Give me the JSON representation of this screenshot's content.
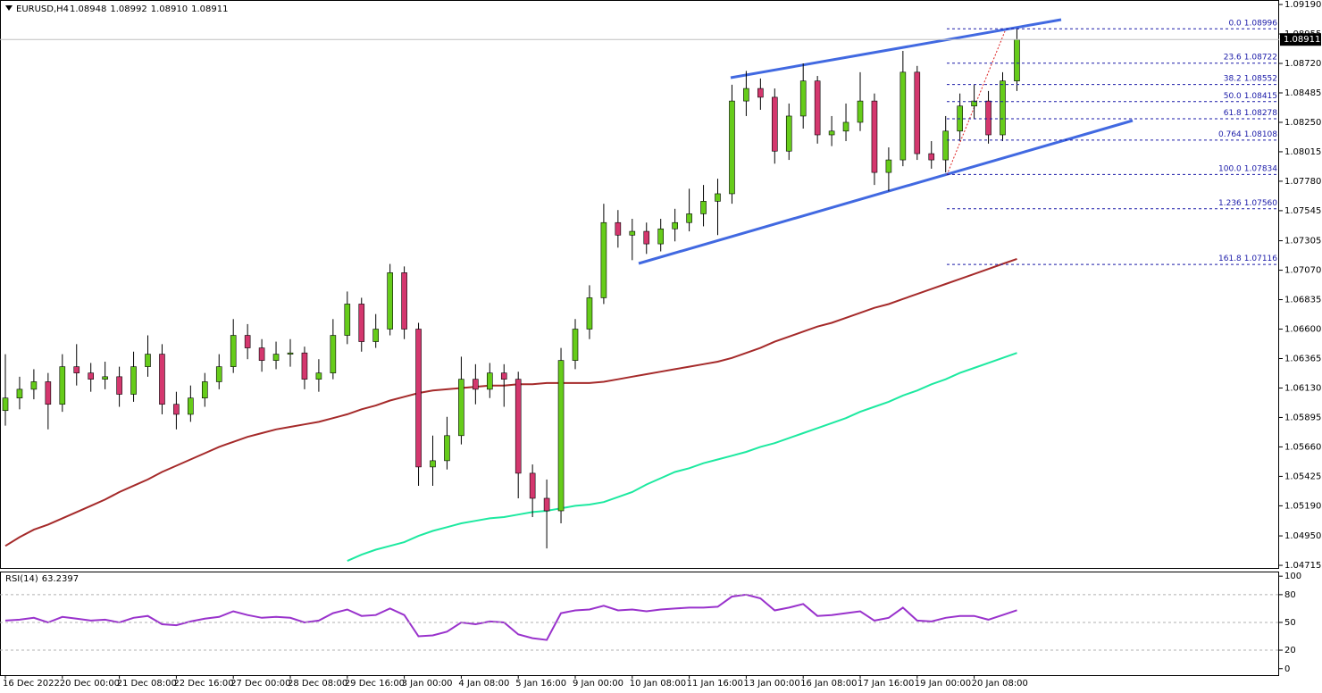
{
  "chart_data": [
    {
      "type": "candlestick",
      "title": "EURUSD,H4",
      "quote": [
        {
          "value": 1.08948,
          "label": "1.08948"
        },
        {
          "value": 1.08992,
          "label": "1.08992"
        },
        {
          "value": 1.0891,
          "label": "1.08910"
        },
        {
          "value": 1.08911,
          "label": "1.08911"
        }
      ],
      "current_price": 1.08911,
      "ylim": [
        1.04694,
        1.09226
      ],
      "yticks": [
        {
          "value": 1.0919,
          "label": "1.09190"
        },
        {
          "value": 1.08955,
          "label": "1.08955"
        },
        {
          "value": 1.0872,
          "label": "1.08720"
        },
        {
          "value": 1.08485,
          "label": "1.08485"
        },
        {
          "value": 1.0825,
          "label": "1.08250"
        },
        {
          "value": 1.08015,
          "label": "1.08015"
        },
        {
          "value": 1.0778,
          "label": "1.07780"
        },
        {
          "value": 1.07545,
          "label": "1.07545"
        },
        {
          "value": 1.07305,
          "label": "1.07305"
        },
        {
          "value": 1.0707,
          "label": "1.07070"
        },
        {
          "value": 1.06835,
          "label": "1.06835"
        },
        {
          "value": 1.066,
          "label": "1.06600"
        },
        {
          "value": 1.06365,
          "label": "1.06365"
        },
        {
          "value": 1.0613,
          "label": "1.06130"
        },
        {
          "value": 1.05895,
          "label": "1.05895"
        },
        {
          "value": 1.0566,
          "label": "1.05660"
        },
        {
          "value": 1.05425,
          "label": "1.05425"
        },
        {
          "value": 1.0519,
          "label": "1.05190"
        },
        {
          "value": 1.0495,
          "label": "1.04950"
        },
        {
          "value": 1.04715,
          "label": "1.04715"
        }
      ],
      "categories": [
        "16 Dec 2022",
        null,
        null,
        null,
        "20 Dec 00:00",
        null,
        null,
        null,
        "21 Dec 08:00",
        null,
        null,
        null,
        "22 Dec 16:00",
        null,
        null,
        null,
        "27 Dec 00:00",
        null,
        null,
        null,
        "28 Dec 08:00",
        null,
        null,
        null,
        "29 Dec 16:00",
        null,
        null,
        null,
        "3 Jan 00:00",
        null,
        null,
        null,
        "4 Jan 08:00",
        null,
        null,
        null,
        "5 Jan 16:00",
        null,
        null,
        null,
        "9 Jan 00:00",
        null,
        null,
        null,
        "10 Jan 08:00",
        null,
        null,
        null,
        "11 Jan 16:00",
        null,
        null,
        null,
        "13 Jan 00:00",
        null,
        null,
        null,
        "16 Jan 08:00",
        null,
        null,
        null,
        "17 Jan 16:00",
        null,
        null,
        null,
        "19 Jan 00:00",
        null,
        null,
        null,
        "20 Jan 08:00",
        null,
        null,
        null
      ],
      "candles": [
        [
          1.0595,
          1.064,
          1.0583,
          1.0605
        ],
        [
          1.0605,
          1.0622,
          1.0596,
          1.0612
        ],
        [
          1.0612,
          1.0628,
          1.0604,
          1.0618
        ],
        [
          1.0618,
          1.0625,
          1.058,
          1.06
        ],
        [
          1.06,
          1.064,
          1.0594,
          1.063
        ],
        [
          1.063,
          1.0648,
          1.0615,
          1.0625
        ],
        [
          1.0625,
          1.0633,
          1.061,
          1.062
        ],
        [
          1.062,
          1.0634,
          1.0612,
          1.0622
        ],
        [
          1.0622,
          1.063,
          1.0598,
          1.0608
        ],
        [
          1.0608,
          1.0642,
          1.0602,
          1.063
        ],
        [
          1.063,
          1.0655,
          1.0622,
          1.064
        ],
        [
          1.064,
          1.0648,
          1.0592,
          1.06
        ],
        [
          1.06,
          1.061,
          1.058,
          1.0592
        ],
        [
          1.0592,
          1.0615,
          1.0586,
          1.0605
        ],
        [
          1.0605,
          1.0625,
          1.0598,
          1.0618
        ],
        [
          1.0618,
          1.064,
          1.0612,
          1.063
        ],
        [
          1.063,
          1.0668,
          1.0625,
          1.0655
        ],
        [
          1.0655,
          1.0664,
          1.0636,
          1.0645
        ],
        [
          1.0645,
          1.0652,
          1.0626,
          1.0635
        ],
        [
          1.0635,
          1.065,
          1.0628,
          1.064
        ],
        [
          1.064,
          1.0652,
          1.063,
          1.0641
        ],
        [
          1.0641,
          1.0646,
          1.0612,
          1.062
        ],
        [
          1.062,
          1.0636,
          1.061,
          1.0625
        ],
        [
          1.0625,
          1.0668,
          1.062,
          1.0655
        ],
        [
          1.0655,
          1.069,
          1.0648,
          1.068
        ],
        [
          1.068,
          1.0685,
          1.0642,
          1.065
        ],
        [
          1.065,
          1.0672,
          1.0645,
          1.066
        ],
        [
          1.066,
          1.0712,
          1.0655,
          1.0705
        ],
        [
          1.0705,
          1.071,
          1.0652,
          1.066
        ],
        [
          1.066,
          1.0665,
          1.0535,
          1.055
        ],
        [
          1.055,
          1.0575,
          1.0535,
          1.0555
        ],
        [
          1.0555,
          1.059,
          1.0548,
          1.0575
        ],
        [
          1.0575,
          1.0638,
          1.0568,
          1.062
        ],
        [
          1.062,
          1.0632,
          1.06,
          1.0612
        ],
        [
          1.0612,
          1.0633,
          1.0605,
          1.0625
        ],
        [
          1.0625,
          1.0632,
          1.0598,
          1.062
        ],
        [
          1.062,
          1.0626,
          1.0525,
          1.0545
        ],
        [
          1.0545,
          1.0552,
          1.051,
          1.0525
        ],
        [
          1.0525,
          1.054,
          1.0485,
          1.0515
        ],
        [
          1.0515,
          1.0645,
          1.0505,
          1.0635
        ],
        [
          1.0635,
          1.0668,
          1.0628,
          1.066
        ],
        [
          1.066,
          1.0695,
          1.0652,
          1.0685
        ],
        [
          1.0685,
          1.076,
          1.068,
          1.0745
        ],
        [
          1.0745,
          1.0755,
          1.0725,
          1.0735
        ],
        [
          1.0735,
          1.0748,
          1.0715,
          1.0738
        ],
        [
          1.0738,
          1.0745,
          1.072,
          1.0728
        ],
        [
          1.0728,
          1.0748,
          1.0722,
          1.074
        ],
        [
          1.074,
          1.0756,
          1.073,
          1.0745
        ],
        [
          1.0745,
          1.0772,
          1.0738,
          1.0752
        ],
        [
          1.0752,
          1.0775,
          1.0742,
          1.0762
        ],
        [
          1.0762,
          1.078,
          1.0735,
          1.0768
        ],
        [
          1.0768,
          1.0855,
          1.076,
          1.0842
        ],
        [
          1.0842,
          1.0866,
          1.083,
          1.0852
        ],
        [
          1.0852,
          1.086,
          1.0835,
          1.0845
        ],
        [
          1.0845,
          1.0852,
          1.0792,
          1.0802
        ],
        [
          1.0802,
          1.084,
          1.0795,
          1.083
        ],
        [
          1.083,
          1.0872,
          1.082,
          1.0858
        ],
        [
          1.0858,
          1.0862,
          1.0808,
          1.0815
        ],
        [
          1.0815,
          1.083,
          1.0806,
          1.0818
        ],
        [
          1.0818,
          1.084,
          1.081,
          1.0825
        ],
        [
          1.0825,
          1.0865,
          1.0818,
          1.0842
        ],
        [
          1.0842,
          1.0848,
          1.0775,
          1.0785
        ],
        [
          1.0785,
          1.0805,
          1.077,
          1.0795
        ],
        [
          1.0795,
          1.0882,
          1.079,
          1.0865
        ],
        [
          1.0865,
          1.087,
          1.0795,
          1.08
        ],
        [
          1.08,
          1.081,
          1.0788,
          1.0795
        ],
        [
          1.0795,
          1.083,
          1.0785,
          1.0818
        ],
        [
          1.0818,
          1.0848,
          1.081,
          1.0838
        ],
        [
          1.0838,
          1.0855,
          1.0828,
          1.0842
        ],
        [
          1.0842,
          1.085,
          1.0808,
          1.0815
        ],
        [
          1.0815,
          1.0865,
          1.081,
          1.0858
        ],
        [
          1.0858,
          1.09,
          1.085,
          1.0891
        ]
      ],
      "bull_color": "#66cc1a",
      "bear_color": "#d4376e",
      "ma_lines": [
        {
          "color": "#a52a2a",
          "values": [
            1.0487,
            1.0494,
            1.05,
            1.0504,
            1.0509,
            1.0514,
            1.0519,
            1.0524,
            1.053,
            1.0535,
            1.054,
            1.0546,
            1.0551,
            1.0556,
            1.0561,
            1.0566,
            1.057,
            1.0574,
            1.0577,
            1.058,
            1.0582,
            1.0584,
            1.0586,
            1.0589,
            1.0592,
            1.0596,
            1.0599,
            1.0603,
            1.0606,
            1.0609,
            1.0611,
            1.0612,
            1.0613,
            1.0614,
            1.0615,
            1.0615,
            1.0616,
            1.0616,
            1.0617,
            1.0617,
            1.0617,
            1.0617,
            1.0618,
            1.062,
            1.0622,
            1.0624,
            1.0626,
            1.0628,
            1.063,
            1.0632,
            1.0634,
            1.0637,
            1.0641,
            1.0645,
            1.065,
            1.0654,
            1.0658,
            1.0662,
            1.0665,
            1.0669,
            1.0673,
            1.0677,
            1.068,
            1.0684,
            1.0688,
            1.0692,
            1.0696,
            1.07,
            1.0704,
            1.0708,
            1.0712,
            1.0716
          ]
        },
        {
          "color": "#1de9a0",
          "values": [
            null,
            null,
            null,
            null,
            null,
            null,
            null,
            null,
            null,
            null,
            null,
            null,
            null,
            null,
            null,
            null,
            null,
            null,
            null,
            null,
            null,
            null,
            null,
            null,
            1.0475,
            1.048,
            1.0484,
            1.0487,
            1.049,
            1.0495,
            1.0499,
            1.0502,
            1.0505,
            1.0507,
            1.0509,
            1.051,
            1.0512,
            1.0514,
            1.0515,
            1.0517,
            1.0519,
            1.052,
            1.0522,
            1.0526,
            1.053,
            1.0536,
            1.0541,
            1.0546,
            1.0549,
            1.0553,
            1.0556,
            1.0559,
            1.0562,
            1.0566,
            1.0569,
            1.0573,
            1.0577,
            1.0581,
            1.0585,
            1.0589,
            1.0594,
            1.0598,
            1.0602,
            1.0607,
            1.0611,
            1.0616,
            1.062,
            1.0625,
            1.0629,
            1.0633,
            1.0637,
            1.0641
          ]
        }
      ],
      "fib_color": "#1a1aa8",
      "fib": [
        {
          "level": "0.0",
          "price": {
            "value": 1.08996,
            "label": "1.08996"
          }
        },
        {
          "level": "23.6",
          "price": {
            "value": 1.08722,
            "label": "1.08722"
          }
        },
        {
          "level": "38.2",
          "price": {
            "value": 1.08552,
            "label": "1.08552"
          }
        },
        {
          "level": "50.0",
          "price": {
            "value": 1.08415,
            "label": "1.08415"
          }
        },
        {
          "level": "61.8",
          "price": {
            "value": 1.08278,
            "label": "1.08278"
          }
        },
        {
          "level": "0.764",
          "price": {
            "value": 1.08108,
            "label": "1.08108"
          }
        },
        {
          "level": "100.0",
          "price": {
            "value": 1.07834,
            "label": "1.07834"
          }
        },
        {
          "level": "1.236",
          "price": {
            "value": 1.0756,
            "label": "1.07560"
          }
        },
        {
          "level": "161.8",
          "price": {
            "value": 1.07116,
            "label": "1.07116"
          }
        }
      ]
    },
    {
      "type": "line",
      "title": "RSI(14)",
      "last": 63.2397,
      "color": "#9932cc",
      "ylim": [
        -7,
        105
      ],
      "yticks": [
        100,
        80,
        50,
        20,
        0
      ],
      "levels": [
        80,
        50,
        20
      ],
      "values": [
        52,
        53,
        55,
        50,
        56,
        54,
        52,
        53,
        50,
        55,
        57,
        48,
        47,
        51,
        54,
        56,
        62,
        58,
        55,
        56,
        55,
        50,
        52,
        60,
        64,
        57,
        58,
        65,
        58,
        35,
        36,
        40,
        50,
        48,
        51,
        50,
        37,
        33,
        31,
        60,
        63,
        64,
        68,
        63,
        64,
        62,
        64,
        65,
        66,
        66,
        67,
        78,
        80,
        76,
        63,
        66,
        70,
        57,
        58,
        60,
        62,
        52,
        55,
        66,
        52,
        51,
        55,
        57,
        57,
        53,
        58,
        63.2397
      ]
    }
  ]
}
